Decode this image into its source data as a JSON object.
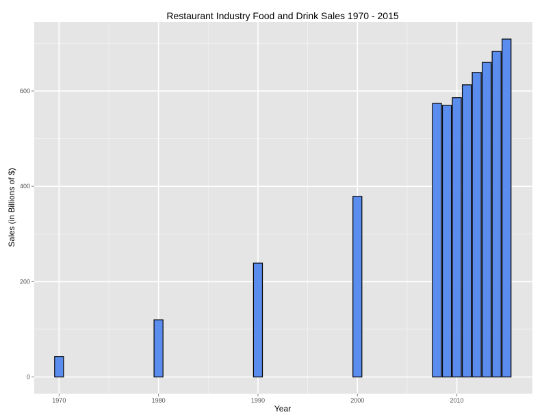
{
  "chart_data": {
    "type": "bar",
    "title": "Restaurant Industry Food and Drink Sales 1970 - 2015",
    "xlabel": "Year",
    "ylabel": "Sales (in Billions of $)",
    "x": [
      1970,
      1980,
      1990,
      2000,
      2008,
      2009,
      2010,
      2011,
      2012,
      2013,
      2014,
      2015
    ],
    "values": [
      43,
      120,
      239,
      379,
      574,
      570,
      586,
      613,
      639,
      660,
      683,
      709
    ],
    "xticks": [
      1970,
      1980,
      1990,
      2000,
      2010
    ],
    "xtick_labels": [
      "1970",
      "1980",
      "1990",
      "2000",
      "2010"
    ],
    "yticks": [
      0,
      200,
      400,
      600
    ],
    "ytick_labels": [
      "0",
      "200",
      "400",
      "600"
    ],
    "xlim": [
      1967.5,
      2017.6
    ],
    "ylim": [
      -35,
      745
    ],
    "grid": true,
    "colors": {
      "bar_fill": "#5b8def",
      "bar_stroke": "#000000",
      "panel_bg": "#e5e5e5",
      "grid_major": "#ffffff",
      "grid_minor": "#f2f2f2"
    }
  }
}
